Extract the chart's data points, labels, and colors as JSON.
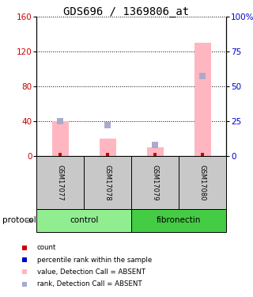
{
  "title": "GDS696 / 1369806_at",
  "samples": [
    "GSM17077",
    "GSM17078",
    "GSM17079",
    "GSM17080"
  ],
  "pink_bars": [
    40,
    20,
    10,
    130
  ],
  "blue_squares_pct": [
    25,
    22,
    8,
    57
  ],
  "ylim_left": [
    0,
    160
  ],
  "ylim_right": [
    0,
    100
  ],
  "yticks_left": [
    0,
    40,
    80,
    120,
    160
  ],
  "yticks_right": [
    0,
    25,
    50,
    75,
    100
  ],
  "ytick_labels_right": [
    "0",
    "25",
    "50",
    "75",
    "100%"
  ],
  "pink_color": "#FFB6C1",
  "blue_color": "#AAAACC",
  "red_color": "#CC0000",
  "dark_blue": "#0000CC",
  "left_tick_color": "#CC0000",
  "right_tick_color": "#0000CC",
  "bar_width": 0.35,
  "control_color": "#90EE90",
  "fibronectin_color": "#44CC44",
  "gray_color": "#C8C8C8",
  "legend_labels": [
    "count",
    "percentile rank within the sample",
    "value, Detection Call = ABSENT",
    "rank, Detection Call = ABSENT"
  ],
  "legend_colors": [
    "#CC0000",
    "#0000CC",
    "#FFB6C1",
    "#AAAACC"
  ],
  "title_fontsize": 10
}
